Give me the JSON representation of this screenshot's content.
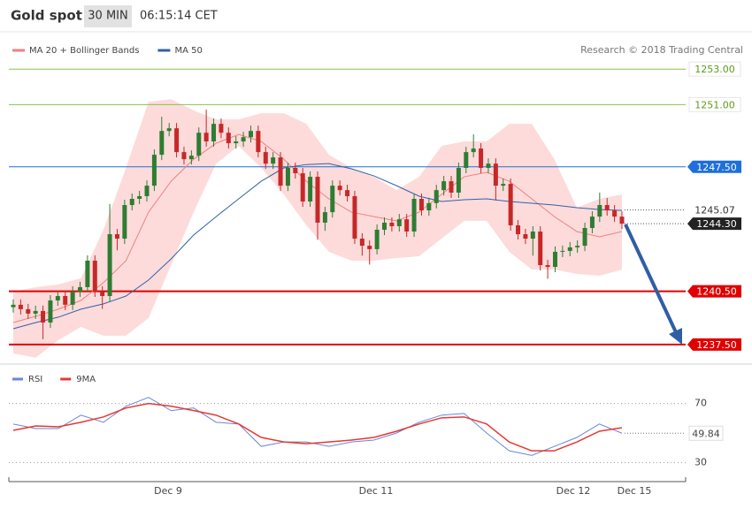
{
  "header": {
    "title": "Gold spot",
    "interval": "30 MIN",
    "time": "06:15:14 CET"
  },
  "chart_data": [
    {
      "type": "candlestick",
      "source": "Research © 2018 Trading Central",
      "up_color": "#2e7d32",
      "down_color": "#c62828",
      "ylim": [
        1236.5,
        1254.9
      ],
      "open": [
        1239.6,
        1239.74,
        1239.49,
        1239.24,
        1239.39,
        1238.74,
        1239.98,
        1240.23,
        1239.74,
        1240.48,
        1240.73,
        1242.22,
        1240.48,
        1240.23,
        1243.71,
        1243.46,
        1245.35,
        1245.7,
        1245.85,
        1246.44,
        1248.18,
        1249.52,
        1249.67,
        1248.33,
        1247.93,
        1248.13,
        1249.42,
        1248.93,
        1249.92,
        1249.42,
        1248.83,
        1248.93,
        1249.17,
        1249.52,
        1248.33,
        1247.68,
        1248.03,
        1246.44,
        1247.44,
        1247.14,
        1245.55,
        1246.94,
        1244.36,
        1244.95,
        1246.44,
        1246.19,
        1245.85,
        1243.46,
        1243.06,
        1242.87,
        1243.96,
        1244.36,
        1244.16,
        1244.55,
        1243.86,
        1245.7,
        1245.05,
        1245.46,
        1246.19,
        1246.69,
        1246.05,
        1247.44,
        1248.33,
        1248.53,
        1247.44,
        1247.68,
        1246.44,
        1246.54,
        1244.21,
        1243.71,
        1243.46,
        1243.86,
        1241.97,
        1241.87,
        1242.72,
        1242.77,
        1242.97,
        1243.06,
        1244.06,
        1244.7,
        1245.35,
        1245.05,
        1244.7
      ],
      "high": [
        1240.04,
        1240.04,
        1239.79,
        1239.69,
        1239.69,
        1240.28,
        1240.53,
        1240.53,
        1240.78,
        1241.03,
        1242.52,
        1242.52,
        1240.78,
        1245.4,
        1244.01,
        1245.65,
        1246.0,
        1246.15,
        1246.74,
        1248.48,
        1250.32,
        1249.97,
        1249.97,
        1248.63,
        1248.43,
        1249.72,
        1250.72,
        1250.22,
        1250.22,
        1249.72,
        1249.23,
        1249.47,
        1249.82,
        1249.82,
        1248.63,
        1248.33,
        1248.33,
        1247.74,
        1247.74,
        1247.44,
        1247.24,
        1247.24,
        1245.25,
        1246.74,
        1246.74,
        1246.49,
        1246.15,
        1243.76,
        1243.36,
        1244.26,
        1244.66,
        1244.66,
        1244.85,
        1244.85,
        1246.0,
        1246.0,
        1245.76,
        1246.49,
        1246.99,
        1246.99,
        1247.74,
        1248.63,
        1249.33,
        1248.83,
        1247.98,
        1247.98,
        1246.84,
        1246.84,
        1244.51,
        1244.01,
        1244.16,
        1244.16,
        1242.27,
        1243.02,
        1243.07,
        1243.27,
        1243.36,
        1244.36,
        1245.0,
        1246.05,
        1245.75,
        1245.35,
        1245.0
      ],
      "low": [
        1239.3,
        1239.19,
        1238.94,
        1238.94,
        1237.8,
        1238.44,
        1239.68,
        1239.44,
        1239.44,
        1240.18,
        1240.43,
        1240.18,
        1239.5,
        1239.93,
        1242.8,
        1243.16,
        1245.05,
        1245.4,
        1245.55,
        1246.14,
        1247.88,
        1249.22,
        1248.03,
        1247.63,
        1247.63,
        1247.83,
        1248.63,
        1248.63,
        1249.12,
        1248.53,
        1248.53,
        1248.63,
        1248.87,
        1248.03,
        1247.38,
        1247.38,
        1246.14,
        1246.14,
        1246.84,
        1245.25,
        1245.25,
        1243.4,
        1243.9,
        1244.65,
        1245.89,
        1245.55,
        1243.16,
        1242.5,
        1242.0,
        1242.57,
        1243.66,
        1243.86,
        1243.86,
        1243.56,
        1243.56,
        1244.75,
        1244.75,
        1245.16,
        1245.89,
        1245.75,
        1245.75,
        1247.14,
        1248.03,
        1247.14,
        1247.14,
        1245.6,
        1246.14,
        1243.91,
        1243.41,
        1243.16,
        1242.5,
        1241.67,
        1241.2,
        1241.57,
        1242.42,
        1242.47,
        1242.67,
        1242.76,
        1243.76,
        1244.4,
        1244.75,
        1244.4,
        1244.0
      ],
      "close": [
        1239.74,
        1239.49,
        1239.24,
        1239.39,
        1238.74,
        1239.98,
        1240.23,
        1239.74,
        1240.48,
        1240.73,
        1242.22,
        1240.48,
        1240.23,
        1243.71,
        1243.46,
        1245.35,
        1245.7,
        1245.85,
        1246.44,
        1248.18,
        1249.52,
        1249.67,
        1248.33,
        1247.93,
        1248.13,
        1249.42,
        1248.93,
        1249.92,
        1249.42,
        1248.83,
        1248.93,
        1249.17,
        1249.52,
        1248.33,
        1247.68,
        1248.03,
        1246.44,
        1247.44,
        1247.14,
        1245.55,
        1246.94,
        1244.36,
        1244.95,
        1246.44,
        1246.19,
        1245.85,
        1243.46,
        1243.06,
        1242.87,
        1243.96,
        1244.36,
        1244.16,
        1244.55,
        1243.86,
        1245.7,
        1245.05,
        1245.46,
        1246.19,
        1246.69,
        1246.05,
        1247.44,
        1248.33,
        1248.53,
        1247.44,
        1247.68,
        1246.44,
        1246.54,
        1244.21,
        1243.71,
        1243.46,
        1243.86,
        1241.97,
        1241.87,
        1242.72,
        1242.77,
        1242.97,
        1243.06,
        1244.06,
        1244.7,
        1245.35,
        1245.05,
        1244.7,
        1244.3
      ],
      "series": [
        {
          "name": "MA 20 + Bollinger Bands",
          "color": "#f08080",
          "band_color": "#fdd5d5",
          "values": [
            1238.74,
            1239.09,
            1239.49,
            1239.98,
            1240.98,
            1242.22,
            1244.95,
            1246.69,
            1247.93,
            1248.83,
            1249.32,
            1248.93,
            1247.93,
            1246.69,
            1245.7,
            1244.95,
            1244.7,
            1244.46,
            1244.95,
            1245.95,
            1246.94,
            1247.19,
            1246.69,
            1245.7,
            1244.7,
            1243.86,
            1243.56,
            1243.86
          ],
          "upper": [
            1240.48,
            1240.73,
            1240.88,
            1241.23,
            1243.96,
            1247.44,
            1251.16,
            1251.31,
            1250.67,
            1250.17,
            1250.17,
            1250.52,
            1250.52,
            1249.92,
            1248.18,
            1247.44,
            1246.94,
            1246.19,
            1246.94,
            1248.68,
            1248.93,
            1248.93,
            1249.92,
            1249.92,
            1247.93,
            1245.2,
            1245.7,
            1245.95
          ],
          "lower": [
            1237.0,
            1236.76,
            1237.75,
            1238.49,
            1238.0,
            1238.0,
            1238.99,
            1241.97,
            1244.95,
            1247.68,
            1248.68,
            1247.44,
            1245.95,
            1244.21,
            1242.72,
            1242.22,
            1242.22,
            1242.37,
            1242.47,
            1243.46,
            1244.46,
            1244.46,
            1242.72,
            1241.72,
            1241.72,
            1241.47,
            1241.37,
            1241.72
          ]
        },
        {
          "name": "MA 50",
          "color": "#2f62a8",
          "values": [
            1238.39,
            1238.74,
            1239.04,
            1239.49,
            1239.79,
            1240.23,
            1241.13,
            1242.32,
            1243.66,
            1244.7,
            1245.7,
            1246.69,
            1247.44,
            1247.63,
            1247.68,
            1247.39,
            1246.99,
            1246.44,
            1245.85,
            1245.55,
            1245.65,
            1245.7,
            1245.55,
            1245.45,
            1245.35,
            1245.2,
            1245.1,
            1245.05
          ]
        }
      ],
      "levels": [
        {
          "value": 1253,
          "label": "1253.00",
          "color": "#8bc34a",
          "style": "outline",
          "line": "solid"
        },
        {
          "value": 1251,
          "label": "1251.00",
          "color": "#8bc34a",
          "style": "outline",
          "line": "solid"
        },
        {
          "value": 1247.5,
          "label": "1247.50",
          "color": "#1e6fd9",
          "style": "fill",
          "line": "solid"
        },
        {
          "value": 1245.07,
          "color": "#333333",
          "style": "plain",
          "line": "dotted"
        },
        {
          "value": 1244.3,
          "label": "1244.30",
          "color": "#222222",
          "style": "fill",
          "line": "dotted"
        },
        {
          "value": 1240.5,
          "label": "1240.50",
          "color": "#e00000",
          "style": "fill",
          "line": "thick"
        },
        {
          "value": 1237.5,
          "label": "1237.50",
          "color": "#e00000",
          "style": "fill",
          "line": "thick"
        }
      ]
    },
    {
      "type": "line",
      "ylim": [
        20,
        92
      ],
      "yticks": [
        30,
        70
      ],
      "grid": true,
      "x_labels": [
        "Dec 9",
        "Dec 11",
        "Dec 12",
        "Dec 15"
      ],
      "series": [
        {
          "name": "RSI",
          "color": "#6b86d6",
          "values": [
            56.1,
            53.0,
            53.0,
            62.1,
            57.3,
            68.2,
            74.2,
            65.2,
            67.0,
            57.3,
            56.1,
            40.9,
            43.9,
            43.9,
            40.9,
            43.9,
            45.2,
            50.0,
            57.3,
            62.1,
            63.3,
            50.0,
            37.9,
            34.8,
            40.9,
            47.0,
            56.1,
            49.84
          ]
        },
        {
          "name": "9MA",
          "color": "#e53935",
          "values": [
            51.8,
            54.8,
            54.2,
            57.3,
            60.9,
            67.0,
            70.0,
            68.2,
            65.2,
            62.1,
            56.1,
            47.0,
            43.9,
            42.7,
            43.9,
            45.2,
            47.0,
            51.2,
            56.1,
            60.3,
            60.9,
            56.1,
            43.9,
            37.9,
            37.9,
            43.9,
            51.2,
            53.6
          ]
        }
      ]
    }
  ]
}
